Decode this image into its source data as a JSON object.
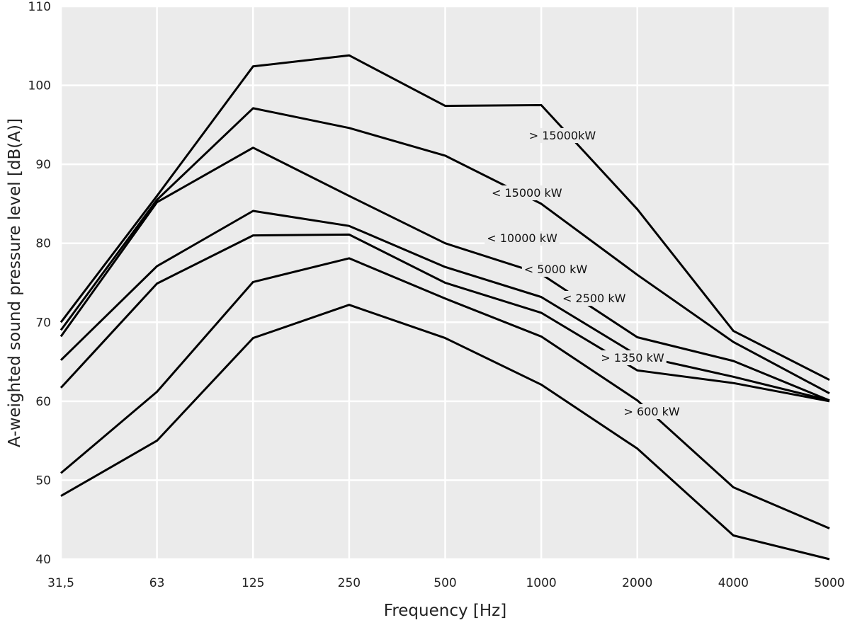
{
  "chart_data": {
    "type": "line",
    "title": "",
    "xlabel": "Frequency [Hz]",
    "ylabel": "A-weighted sound pressure level [dB(A)]",
    "categories": [
      "31,5",
      "63",
      "125",
      "250",
      "500",
      "1000",
      "2000",
      "4000",
      "5000"
    ],
    "ylim": [
      40,
      110
    ],
    "yticks": [
      40,
      50,
      60,
      70,
      80,
      90,
      100,
      110
    ],
    "grid": true,
    "colors": {
      "panel": "#ebebeb",
      "grid": "#ffffff",
      "line": "#000000"
    },
    "series": [
      {
        "name": "> 15000kW",
        "values": [
          70,
          86,
          102.4,
          103.8,
          97.4,
          97.5,
          84.3,
          68.9,
          62.7
        ]
      },
      {
        "name": "< 15000 kW",
        "values": [
          69,
          85.5,
          97.1,
          94.6,
          91.1,
          85.0,
          76.0,
          67.5,
          61.0
        ]
      },
      {
        "name": "< 10000 kW",
        "values": [
          68.2,
          85.2,
          92.1,
          86.0,
          80.0,
          76.1,
          68.1,
          65.1,
          60.1
        ]
      },
      {
        "name": "< 5000 kW",
        "values": [
          65.2,
          77.1,
          84.1,
          82.2,
          77.0,
          73.2,
          65.8,
          63.1,
          60.1
        ]
      },
      {
        "name": "< 2500 kW",
        "values": [
          61.7,
          74.9,
          81.0,
          81.1,
          75.0,
          71.2,
          63.9,
          62.3,
          60.0
        ]
      },
      {
        "name": "> 1350 kW",
        "values": [
          50.9,
          61.2,
          75.1,
          78.1,
          73.0,
          68.2,
          60.1,
          49.1,
          43.9
        ]
      },
      {
        "name": "> 600 kW",
        "values": [
          48.0,
          55.0,
          68.0,
          72.2,
          68.0,
          62.1,
          54.0,
          43.0,
          40.0
        ]
      }
    ]
  }
}
